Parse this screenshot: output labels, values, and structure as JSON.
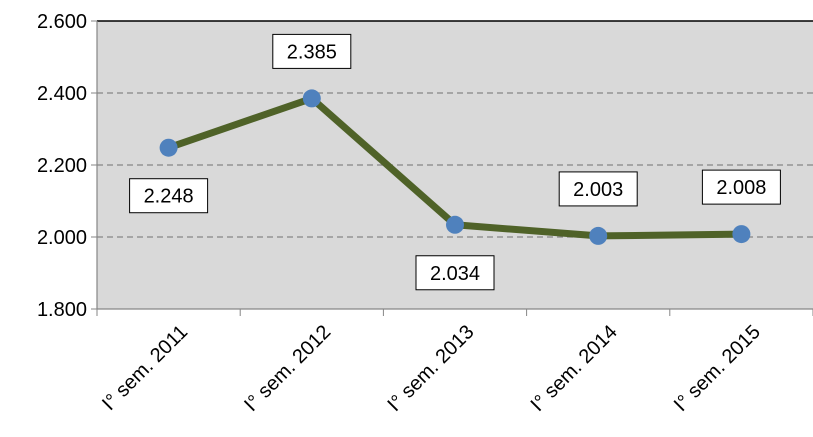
{
  "chart_data": {
    "type": "line",
    "categories": [
      "I° sem. 2011",
      "I° sem. 2012",
      "I° sem. 2013",
      "I° sem. 2014",
      "I° sem. 2015"
    ],
    "series": [
      {
        "values": [
          2248,
          2385,
          2034,
          2003,
          2008
        ]
      }
    ],
    "data_labels": [
      "2.248",
      "2.385",
      "2.034",
      "2.003",
      "2.008"
    ],
    "y_ticks": [
      {
        "value": 1800,
        "label": "1.800"
      },
      {
        "value": 2000,
        "label": "2.000"
      },
      {
        "value": 2200,
        "label": "2.200"
      },
      {
        "value": 2400,
        "label": "2.400"
      },
      {
        "value": 2600,
        "label": "2.600"
      }
    ],
    "ylim": [
      1800,
      2600
    ],
    "grid": true,
    "legend": "none",
    "colors": {
      "plot_background": "#d9d9d9",
      "line": "#4f6228",
      "marker": "#4f81bd",
      "gridline": "#868686"
    }
  }
}
